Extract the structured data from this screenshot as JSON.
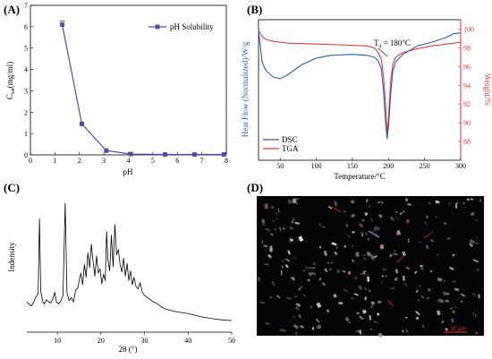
{
  "panels": {
    "A": "(A)",
    "B": "(B)",
    "C": "(C)",
    "D": "(D)"
  },
  "chart_data": [
    {
      "panel": "A",
      "type": "line",
      "xlabel": "pH",
      "ylabel": "C_sat(mg/ml)",
      "ylabel_main": "C",
      "ylabel_sub": "sat",
      "ylabel_rest": "(mg/ml)",
      "xlim": [
        0,
        8
      ],
      "ylim": [
        0,
        7
      ],
      "xticks": [
        0,
        1,
        2,
        3,
        4,
        5,
        6,
        7,
        8
      ],
      "yticks": [
        0,
        1,
        2,
        3,
        4,
        5,
        6,
        7
      ],
      "legend_position": "top-right",
      "color": "#5b4aa5",
      "series": [
        {
          "name": "pH Solubility",
          "x": [
            1.3,
            2.1,
            3.1,
            4.1,
            5.5,
            6.7,
            7.9
          ],
          "y": [
            6.1,
            1.45,
            0.2,
            0.04,
            0.02,
            0.02,
            0.02
          ]
        }
      ]
    },
    {
      "panel": "B",
      "type": "line",
      "xlabel": "Temperature/°C",
      "ylabel": "Heat Flow (Normalized)/W/g",
      "y2label": "Weight/%",
      "xlim": [
        20,
        300
      ],
      "y2lim": [
        86,
        101
      ],
      "xticks": [
        50,
        100,
        150,
        200,
        250,
        300
      ],
      "y2ticks": [
        88,
        90,
        92,
        94,
        96,
        98,
        100
      ],
      "annotation": "T_d = 180°C",
      "annotation_main": "T",
      "annotation_sub": "d",
      "annotation_rest": " = 180°C",
      "legend_position": "bottom-left",
      "series": [
        {
          "name": "DSC",
          "color": "#2d5fa8",
          "x": [
            20,
            25,
            30,
            40,
            50,
            60,
            80,
            100,
            120,
            150,
            170,
            180,
            185,
            190,
            193,
            196,
            198,
            200,
            203,
            206,
            210,
            220,
            240,
            260,
            280,
            290,
            300
          ],
          "y": [
            99.8,
            96.5,
            95.6,
            94.9,
            94.7,
            95.1,
            96.2,
            96.9,
            97.2,
            97.3,
            97.2,
            97.0,
            96.7,
            95.8,
            93.5,
            90.0,
            88.3,
            89.5,
            93.0,
            95.5,
            96.5,
            97.3,
            98.2,
            98.6,
            99.1,
            99.5,
            99.6
          ]
        },
        {
          "name": "TGA",
          "color": "#e03a3a",
          "x": [
            20,
            25,
            30,
            40,
            60,
            100,
            140,
            170,
            180,
            185,
            190,
            193,
            196,
            198,
            200,
            203,
            206,
            210,
            220,
            240,
            260,
            300
          ],
          "y": [
            99.9,
            99.2,
            98.9,
            98.7,
            98.5,
            98.4,
            98.3,
            98.2,
            98.0,
            97.6,
            96.8,
            95.0,
            92.0,
            88.8,
            90.5,
            94.5,
            96.2,
            97.0,
            97.5,
            97.9,
            98.2,
            98.6
          ]
        }
      ]
    },
    {
      "panel": "C",
      "type": "line",
      "xlabel": "2θ (°)",
      "ylabel": "Indensity",
      "xlim": [
        3,
        50
      ],
      "xticks": [
        10,
        20,
        30,
        40,
        50
      ],
      "color": "#000000",
      "series": [
        {
          "name": "",
          "x": [
            3,
            4,
            4.5,
            5,
            5.6,
            5.9,
            6.2,
            6.6,
            7,
            7.5,
            8,
            8.5,
            9,
            9.4,
            9.8,
            10.3,
            10.8,
            11.3,
            11.8,
            12.2,
            12.7,
            13.2,
            13.7,
            14.2,
            14.7,
            15,
            15.4,
            15.8,
            16.2,
            16.6,
            17,
            17.4,
            17.8,
            18.2,
            18.6,
            19,
            19.4,
            19.8,
            20.2,
            20.6,
            21,
            21.3,
            21.6,
            22,
            22.4,
            22.8,
            23.2,
            23.6,
            24,
            24.4,
            24.8,
            25.2,
            25.6,
            26,
            26.4,
            26.8,
            27.2,
            27.6,
            28,
            28.5,
            29,
            29.5,
            30,
            31,
            32,
            33,
            34,
            35,
            37,
            40,
            43,
            46,
            48,
            50
          ],
          "y": [
            40,
            32,
            38,
            48,
            56,
            195,
            60,
            42,
            36,
            44,
            40,
            38,
            46,
            58,
            40,
            36,
            42,
            52,
            225,
            58,
            42,
            48,
            40,
            62,
            66,
            80,
            94,
            72,
            110,
            86,
            132,
            104,
            148,
            116,
            88,
            126,
            94,
            102,
            74,
            92,
            80,
            172,
            120,
            98,
            165,
            106,
            185,
            128,
            138,
            110,
            96,
            122,
            88,
            112,
            80,
            98,
            72,
            86,
            70,
            64,
            76,
            58,
            52,
            46,
            40,
            36,
            30,
            26,
            22,
            18,
            12,
            8,
            6,
            5
          ]
        }
      ]
    }
  ],
  "micrograph": {
    "scale_bar": "20 μm"
  }
}
